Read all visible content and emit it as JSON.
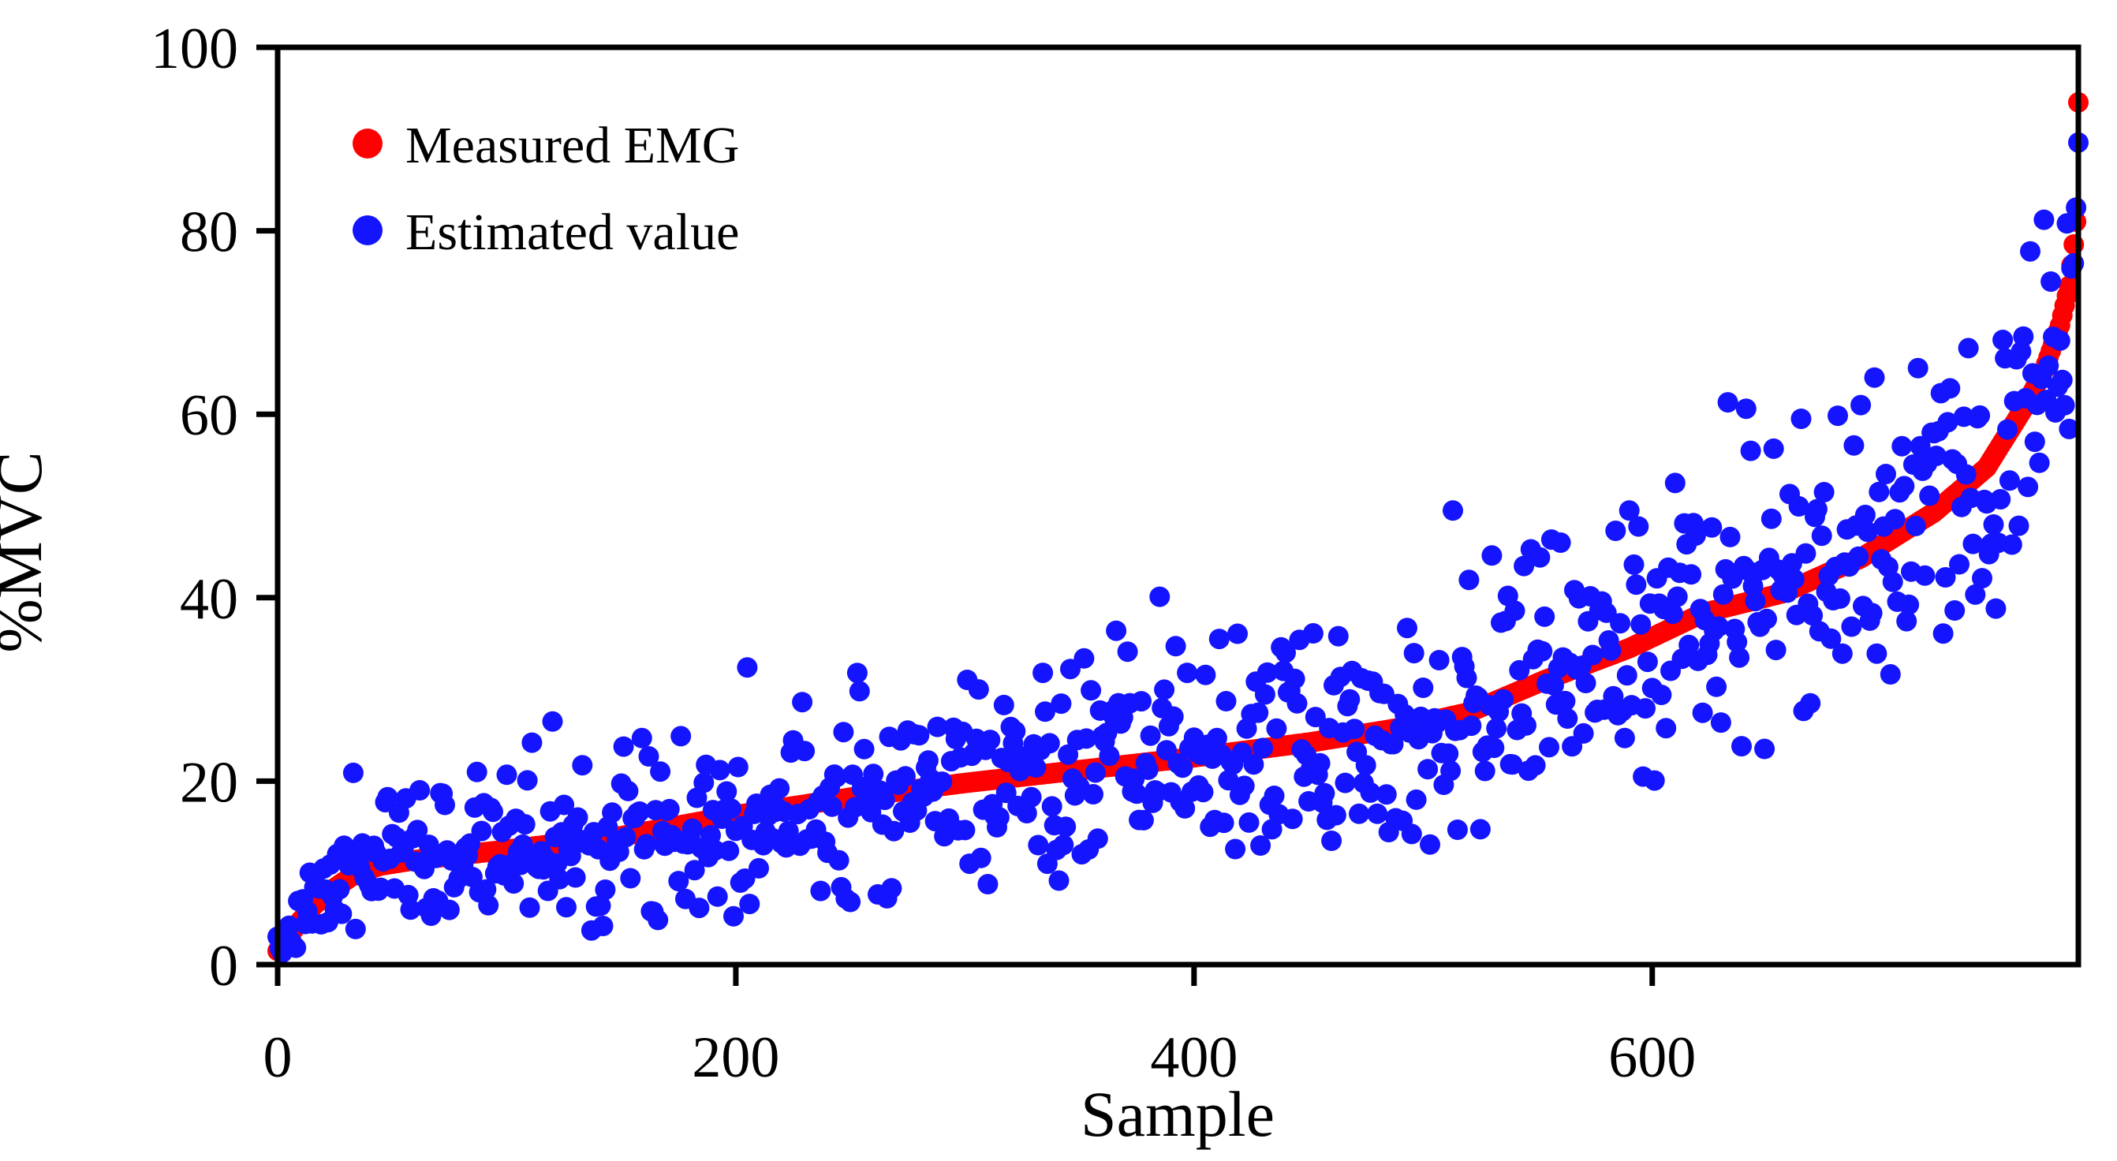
{
  "chart_data": {
    "type": "scatter",
    "title": "",
    "xlabel": "Sample",
    "ylabel": "%MVC",
    "xlim": [
      0,
      786
    ],
    "ylim": [
      0,
      100
    ],
    "x_ticks": [
      0,
      200,
      400,
      600
    ],
    "y_ticks": [
      0,
      20,
      40,
      60,
      80,
      100
    ],
    "grid": false,
    "plot_border": "full-box",
    "legend_position": "top-left-inside",
    "n_samples": 787,
    "background_color": "#ffffff",
    "axis_color": "#000000",
    "series": [
      {
        "name": "Measured EMG",
        "color": "#ff0000",
        "marker": "filled-circle",
        "role": "sorted measured EMG values forming a smooth monotonically increasing curve",
        "curve_anchors": [
          [
            0,
            1.5
          ],
          [
            4,
            2.8
          ],
          [
            10,
            4.8
          ],
          [
            16,
            6.5
          ],
          [
            24,
            8.2
          ],
          [
            34,
            9.9
          ],
          [
            45,
            10.8
          ],
          [
            60,
            11.4
          ],
          [
            96,
            12.4
          ],
          [
            150,
            14.0
          ],
          [
            200,
            16.3
          ],
          [
            250,
            18.2
          ],
          [
            300,
            19.8
          ],
          [
            350,
            21.2
          ],
          [
            400,
            22.6
          ],
          [
            450,
            24.2
          ],
          [
            490,
            25.8
          ],
          [
            520,
            27.5
          ],
          [
            553,
            31.0
          ],
          [
            590,
            34.5
          ],
          [
            622,
            38.3
          ],
          [
            657,
            40.5
          ],
          [
            691,
            44.3
          ],
          [
            723,
            49.3
          ],
          [
            746,
            54.2
          ],
          [
            763,
            61.0
          ],
          [
            771,
            64.8
          ],
          [
            778,
            69.7
          ],
          [
            782,
            74.0
          ],
          [
            784,
            78.5
          ],
          [
            785,
            81.0
          ],
          [
            786,
            94.0
          ]
        ]
      },
      {
        "name": "Estimated value",
        "color": "#1414ff",
        "marker": "filled-circle",
        "role": "model-estimated %MVC scattered around the measured curve",
        "noise_model": "gaussian around measured curve, sd grows with sample index",
        "noise_sd_anchors": [
          [
            0,
            0.7
          ],
          [
            15,
            2.2
          ],
          [
            40,
            3.2
          ],
          [
            100,
            4.2
          ],
          [
            200,
            5.0
          ],
          [
            350,
            5.5
          ],
          [
            450,
            6.0
          ],
          [
            550,
            6.8
          ],
          [
            650,
            7.5
          ],
          [
            786,
            7.8
          ]
        ],
        "seed": 7,
        "outliers": [
          [
            33,
            20.9
          ],
          [
            47,
            17.7
          ],
          [
            62,
            19.0
          ],
          [
            87,
            21.0
          ],
          [
            100,
            20.7
          ],
          [
            111,
            24.2
          ],
          [
            120,
            26.5
          ],
          [
            130,
            9.5
          ],
          [
            162,
            22.7
          ],
          [
            176,
            24.9
          ],
          [
            205,
            32.4
          ],
          [
            210,
            10.5
          ],
          [
            253,
            31.8
          ],
          [
            254,
            29.8
          ],
          [
            280,
            25.0
          ],
          [
            306,
            30.0
          ],
          [
            320,
            25.9
          ],
          [
            336,
            11.0
          ],
          [
            340,
            12.5
          ],
          [
            366,
            36.4
          ],
          [
            385,
            40.1
          ],
          [
            411,
            35.5
          ],
          [
            418,
            12.6
          ],
          [
            440,
            34.0
          ],
          [
            460,
            13.5
          ],
          [
            463,
            35.8
          ],
          [
            513,
            49.5
          ],
          [
            530,
            44.6
          ],
          [
            537,
            40.2
          ],
          [
            560,
            46.0
          ],
          [
            590,
            49.5
          ],
          [
            610,
            52.5
          ],
          [
            633,
            61.3
          ],
          [
            641,
            60.6
          ],
          [
            665,
            59.5
          ],
          [
            697,
            64.0
          ],
          [
            726,
            62.3
          ],
          [
            727,
            36.1
          ],
          [
            753,
            68.1
          ],
          [
            754,
            66.1
          ],
          [
            771,
            81.2
          ],
          [
            773,
            65.3
          ],
          [
            776,
            60.2
          ],
          [
            781,
            80.8
          ],
          [
            783,
            75.9
          ]
        ]
      }
    ]
  }
}
